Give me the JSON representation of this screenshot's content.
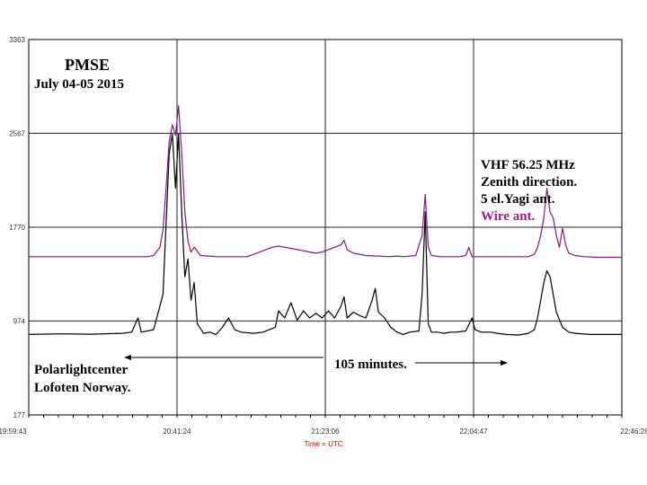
{
  "chart_data": {
    "type": "line",
    "title": "PMSE",
    "subtitle": "July 04-05 2015",
    "xlabel": "Time = UTC",
    "ylabel": "",
    "x_ticks": [
      "19:59:43",
      "20:41:24",
      "21:23:06",
      "22:04:47",
      "22:46:28"
    ],
    "x_range_minutes": [
      0,
      166.75
    ],
    "y_ticks": [
      177,
      974,
      1770,
      2567,
      3363
    ],
    "ylim": [
      177,
      3363
    ],
    "grid": true,
    "series": [
      {
        "name": "5 el.Yagi ant.",
        "color": "#000000",
        "baseline": 860,
        "points": [
          [
            0,
            860
          ],
          [
            10,
            865
          ],
          [
            20,
            862
          ],
          [
            30,
            870
          ],
          [
            33,
            880
          ],
          [
            35,
            1000
          ],
          [
            36,
            880
          ],
          [
            40,
            900
          ],
          [
            43,
            1200
          ],
          [
            44,
            1800
          ],
          [
            45,
            2400
          ],
          [
            46,
            2560
          ],
          [
            47,
            2100
          ],
          [
            48,
            2560
          ],
          [
            49,
            1900
          ],
          [
            50,
            1350
          ],
          [
            51,
            1500
          ],
          [
            52,
            1150
          ],
          [
            53,
            1300
          ],
          [
            54,
            950
          ],
          [
            56,
            870
          ],
          [
            58,
            880
          ],
          [
            60,
            860
          ],
          [
            62,
            920
          ],
          [
            64,
            1000
          ],
          [
            66,
            900
          ],
          [
            68,
            880
          ],
          [
            72,
            870
          ],
          [
            75,
            880
          ],
          [
            77,
            900
          ],
          [
            79,
            920
          ],
          [
            80,
            1060
          ],
          [
            82,
            1000
          ],
          [
            84,
            1130
          ],
          [
            86,
            980
          ],
          [
            88,
            1060
          ],
          [
            90,
            1000
          ],
          [
            92,
            1040
          ],
          [
            94,
            1000
          ],
          [
            96,
            1060
          ],
          [
            98,
            1000
          ],
          [
            100,
            1100
          ],
          [
            101,
            1180
          ],
          [
            102,
            1000
          ],
          [
            104,
            1050
          ],
          [
            106,
            1020
          ],
          [
            108,
            1000
          ],
          [
            110,
            1150
          ],
          [
            111,
            1250
          ],
          [
            112,
            1050
          ],
          [
            114,
            1000
          ],
          [
            116,
            920
          ],
          [
            118,
            880
          ],
          [
            120,
            860
          ],
          [
            122,
            880
          ],
          [
            125,
            890
          ],
          [
            126,
            1200
          ],
          [
            127,
            1900
          ],
          [
            128,
            950
          ],
          [
            129,
            880
          ],
          [
            131,
            880
          ],
          [
            133,
            870
          ],
          [
            135,
            880
          ],
          [
            137,
            880
          ],
          [
            140,
            890
          ],
          [
            142,
            1000
          ],
          [
            143,
            900
          ],
          [
            145,
            880
          ],
          [
            148,
            880
          ],
          [
            150,
            870
          ],
          [
            153,
            860
          ],
          [
            157,
            855
          ],
          [
            160,
            870
          ],
          [
            162,
            900
          ],
          [
            163,
            1000
          ],
          [
            164,
            1150
          ],
          [
            165,
            1300
          ],
          [
            166,
            1400
          ],
          [
            167,
            1350
          ],
          [
            168,
            1200
          ],
          [
            169,
            1050
          ],
          [
            171,
            920
          ],
          [
            173,
            880
          ],
          [
            175,
            870
          ],
          [
            180,
            860
          ],
          [
            185,
            860
          ],
          [
            190,
            860
          ]
        ]
      },
      {
        "name": "Wire ant.",
        "color": "#7d1b7e",
        "baseline": 1520,
        "points": [
          [
            0,
            1520
          ],
          [
            10,
            1520
          ],
          [
            20,
            1520
          ],
          [
            30,
            1520
          ],
          [
            38,
            1520
          ],
          [
            40,
            1530
          ],
          [
            42,
            1600
          ],
          [
            43,
            1750
          ],
          [
            44,
            2100
          ],
          [
            45,
            2500
          ],
          [
            46,
            2640
          ],
          [
            47,
            2550
          ],
          [
            48,
            2800
          ],
          [
            49,
            2400
          ],
          [
            50,
            1900
          ],
          [
            51,
            1650
          ],
          [
            52,
            1560
          ],
          [
            53,
            1600
          ],
          [
            55,
            1530
          ],
          [
            58,
            1525
          ],
          [
            60,
            1520
          ],
          [
            65,
            1520
          ],
          [
            70,
            1520
          ],
          [
            72,
            1540
          ],
          [
            74,
            1560
          ],
          [
            76,
            1580
          ],
          [
            78,
            1600
          ],
          [
            80,
            1610
          ],
          [
            82,
            1600
          ],
          [
            84,
            1590
          ],
          [
            86,
            1580
          ],
          [
            88,
            1570
          ],
          [
            90,
            1560
          ],
          [
            92,
            1550
          ],
          [
            94,
            1560
          ],
          [
            96,
            1580
          ],
          [
            98,
            1600
          ],
          [
            100,
            1620
          ],
          [
            101,
            1660
          ],
          [
            102,
            1580
          ],
          [
            104,
            1550
          ],
          [
            108,
            1530
          ],
          [
            112,
            1525
          ],
          [
            115,
            1520
          ],
          [
            118,
            1525
          ],
          [
            120,
            1520
          ],
          [
            124,
            1530
          ],
          [
            126,
            1700
          ],
          [
            127,
            2050
          ],
          [
            128,
            1600
          ],
          [
            129,
            1530
          ],
          [
            132,
            1520
          ],
          [
            135,
            1520
          ],
          [
            138,
            1520
          ],
          [
            140,
            1530
          ],
          [
            141,
            1600
          ],
          [
            142,
            1520
          ],
          [
            145,
            1520
          ],
          [
            148,
            1520
          ],
          [
            150,
            1520
          ],
          [
            155,
            1520
          ],
          [
            158,
            1520
          ],
          [
            160,
            1520
          ],
          [
            162,
            1540
          ],
          [
            163,
            1600
          ],
          [
            164,
            1700
          ],
          [
            165,
            1850
          ],
          [
            166,
            2100
          ],
          [
            167,
            1900
          ],
          [
            168,
            1850
          ],
          [
            169,
            1700
          ],
          [
            170,
            1600
          ],
          [
            171,
            1760
          ],
          [
            172,
            1620
          ],
          [
            173,
            1550
          ],
          [
            175,
            1530
          ],
          [
            178,
            1520
          ],
          [
            182,
            1515
          ],
          [
            186,
            1515
          ],
          [
            190,
            1515
          ]
        ]
      }
    ],
    "annotations": {
      "signal_header": "VHF 56.25 MHz",
      "direction": "Zenith direction.",
      "yagi": "5 el.Yagi ant.",
      "wire": "Wire ant.",
      "location_line1": "Polarlightcenter",
      "location_line2": "Lofoten Norway.",
      "duration": "105 minutes."
    }
  }
}
